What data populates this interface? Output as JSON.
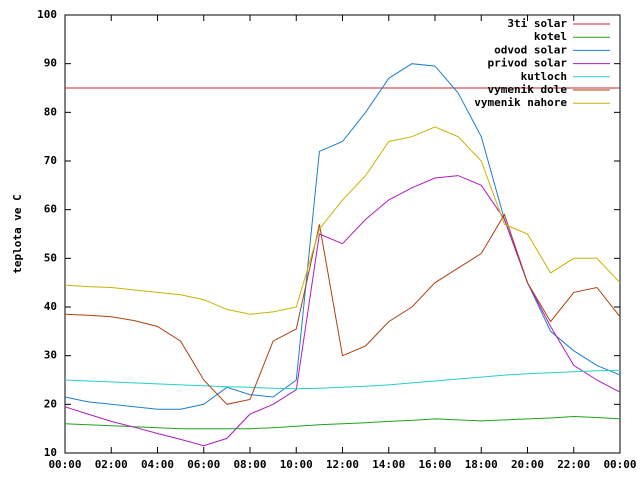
{
  "chart_data": {
    "type": "line",
    "ylabel": "teplota ve C",
    "x": [
      0,
      1,
      2,
      3,
      4,
      5,
      6,
      7,
      8,
      9,
      10,
      11,
      12,
      13,
      14,
      15,
      16,
      17,
      18,
      19,
      20,
      21,
      22,
      23,
      24
    ],
    "xlim": [
      0,
      24
    ],
    "xticks": [
      {
        "value": 0,
        "label": "00:00"
      },
      {
        "value": 2,
        "label": "02:00"
      },
      {
        "value": 4,
        "label": "04:00"
      },
      {
        "value": 6,
        "label": "06:00"
      },
      {
        "value": 8,
        "label": "08:00"
      },
      {
        "value": 10,
        "label": "10:00"
      },
      {
        "value": 12,
        "label": "12:00"
      },
      {
        "value": 14,
        "label": "14:00"
      },
      {
        "value": 16,
        "label": "16:00"
      },
      {
        "value": 18,
        "label": "18:00"
      },
      {
        "value": 20,
        "label": "20:00"
      },
      {
        "value": 22,
        "label": "22:00"
      },
      {
        "value": 24,
        "label": "00:00"
      }
    ],
    "ylim": [
      10,
      100
    ],
    "yticks": [
      10,
      20,
      30,
      40,
      50,
      60,
      70,
      80,
      90,
      100
    ],
    "legend": "top-right",
    "series": [
      {
        "name": "3ti solar",
        "color": "#c0282b",
        "values": [
          85,
          85,
          85,
          85,
          85,
          85,
          85,
          85,
          85,
          85,
          85,
          85,
          85,
          85,
          85,
          85,
          85,
          85,
          85,
          85,
          85,
          85,
          85,
          85,
          85
        ]
      },
      {
        "name": "kotel",
        "color": "#20a020",
        "values": [
          16,
          15.8,
          15.6,
          15.4,
          15.2,
          15,
          15,
          15,
          15,
          15.2,
          15.5,
          15.8,
          16,
          16.2,
          16.5,
          16.7,
          17,
          16.8,
          16.6,
          16.8,
          17,
          17.2,
          17.5,
          17.3,
          17
        ]
      },
      {
        "name": "odvod solar",
        "color": "#1b7fd0",
        "values": [
          21.5,
          20.5,
          20,
          19.5,
          19,
          19,
          20,
          23.5,
          22,
          21.5,
          25,
          72,
          74,
          80,
          87,
          90,
          89.5,
          84,
          75,
          58,
          45,
          35,
          31,
          28,
          26
        ]
      },
      {
        "name": "privod solar",
        "color": "#b01cbf",
        "values": [
          19.5,
          18,
          16.5,
          15.3,
          14,
          12.8,
          11.5,
          13,
          18,
          20,
          23,
          55,
          53,
          58,
          62,
          64.5,
          66.5,
          67,
          65,
          58,
          45,
          36,
          28,
          25,
          22.5
        ]
      },
      {
        "name": "kutloch",
        "color": "#20d0d0",
        "values": [
          25,
          24.8,
          24.6,
          24.4,
          24.2,
          24,
          23.8,
          23.6,
          23.5,
          23.3,
          23.2,
          23.3,
          23.5,
          23.7,
          24,
          24.4,
          24.8,
          25.2,
          25.6,
          26,
          26.3,
          26.5,
          26.7,
          26.9,
          27
        ]
      },
      {
        "name": "vymenik dole",
        "color": "#b04010",
        "values": [
          38.5,
          38.3,
          38,
          37.2,
          36,
          33,
          25,
          20,
          21,
          33,
          35.5,
          57,
          30,
          32,
          37,
          40,
          45,
          48,
          51,
          59,
          45,
          37,
          43,
          44,
          38
        ]
      },
      {
        "name": "vymenik nahore",
        "color": "#c8b400",
        "values": [
          44.5,
          44.2,
          44,
          43.5,
          43,
          42.5,
          41.5,
          39.5,
          38.5,
          39,
          40,
          56,
          62,
          67,
          74,
          75,
          77,
          75,
          70,
          57,
          55,
          47,
          50,
          50,
          45
        ]
      }
    ]
  }
}
